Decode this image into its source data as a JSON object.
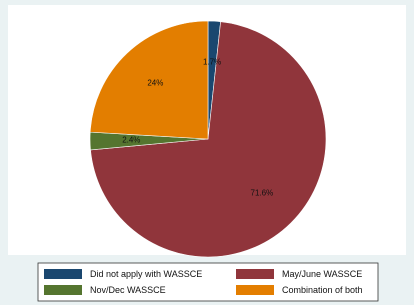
{
  "chart_data": {
    "type": "pie",
    "categories": [
      "Did not apply with WASSCE",
      "May/June WASSCE",
      "Nov/Dec WASSCE",
      "Combination of both"
    ],
    "values": [
      1.7,
      71.6,
      2.4,
      24
    ],
    "value_labels": [
      "1.7%",
      "71.6%",
      "2.4%",
      "24%"
    ],
    "colors": [
      "#1a476f",
      "#90353b",
      "#55752f",
      "#e37e00"
    ],
    "legend": "bottom"
  }
}
